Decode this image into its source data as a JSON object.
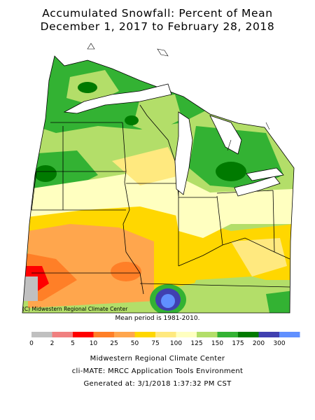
{
  "map": {
    "title_line1": "Accumulated Snowfall: Percent of Mean",
    "title_line2": "December 1, 2017 to February 28, 2018",
    "credit": "(C) Midwestern Regional Climate Center",
    "mean_period": "Mean period is 1981-2010."
  },
  "legend": {
    "ticks": [
      "0",
      "2",
      "5",
      "10",
      "25",
      "50",
      "75",
      "100",
      "125",
      "150",
      "175",
      "200",
      "300"
    ],
    "colors": [
      "#c0c0c0",
      "#f08080",
      "#ff0000",
      "#ff7f27",
      "#ffa64d",
      "#ffd700",
      "#ffe97f",
      "#ffffc0",
      "#b3de69",
      "#33b233",
      "#007a00",
      "#4040b0",
      "#6090ff"
    ]
  },
  "footer": {
    "line1": "Midwestern Regional Climate Center",
    "line2": "cli-MATE: MRCC Application Tools Environment",
    "line3": "Generated at: 3/1/2018 1:37:32 PM CST"
  }
}
